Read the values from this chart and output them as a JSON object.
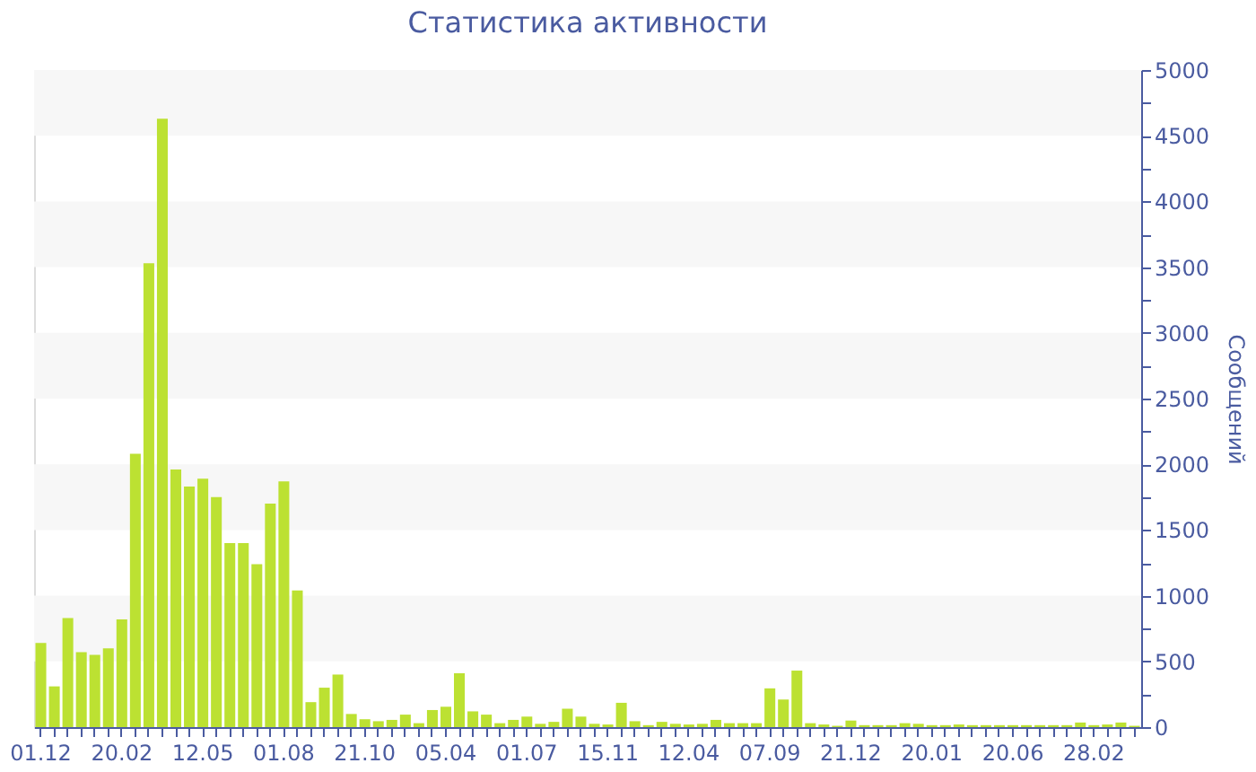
{
  "chart_data": {
    "type": "bar",
    "title": "Статистика активности",
    "ylabel": "Сообщений",
    "categories": [
      "01.12",
      null,
      null,
      null,
      null,
      null,
      "20.02",
      null,
      null,
      null,
      null,
      null,
      "12.05",
      null,
      null,
      null,
      null,
      null,
      "01.08",
      null,
      null,
      null,
      null,
      null,
      "21.10",
      null,
      null,
      null,
      null,
      null,
      "05.04",
      null,
      null,
      null,
      null,
      null,
      "01.07",
      null,
      null,
      null,
      null,
      null,
      "15.11",
      null,
      null,
      null,
      null,
      null,
      "12.04",
      null,
      null,
      null,
      null,
      null,
      "07.09",
      null,
      null,
      null,
      null,
      null,
      "21.12",
      null,
      null,
      null,
      null,
      null,
      "20.01",
      null,
      null,
      null,
      null,
      null,
      "20.06",
      null,
      null,
      null,
      null,
      null,
      "28.02",
      null,
      null,
      null
    ],
    "values": [
      640,
      310,
      830,
      570,
      550,
      600,
      820,
      2080,
      3530,
      4630,
      1960,
      1830,
      1890,
      1750,
      1400,
      1400,
      1240,
      1700,
      1870,
      1040,
      190,
      300,
      400,
      100,
      60,
      45,
      55,
      95,
      30,
      130,
      155,
      410,
      120,
      95,
      30,
      55,
      80,
      25,
      40,
      140,
      80,
      25,
      20,
      185,
      45,
      15,
      40,
      25,
      20,
      25,
      55,
      30,
      30,
      30,
      295,
      210,
      430,
      30,
      20,
      10,
      50,
      15,
      15,
      15,
      30,
      25,
      15,
      15,
      20,
      15,
      15,
      15,
      15,
      15,
      15,
      15,
      15,
      35,
      15,
      20,
      35,
      10
    ],
    "color": "#bce132",
    "ylim": [
      0,
      5000
    ],
    "yticks": [
      0,
      {
        "value": 250,
        "label": null
      },
      500,
      {
        "value": 750,
        "label": null
      },
      1000,
      {
        "value": 1250,
        "label": null
      },
      1500,
      {
        "value": 1750,
        "label": null
      },
      2000,
      {
        "value": 2250,
        "label": null
      },
      2500,
      {
        "value": 2750,
        "label": null
      },
      3000,
      {
        "value": 3250,
        "label": null
      },
      3500,
      {
        "value": 3750,
        "label": null
      },
      4000,
      {
        "value": 4250,
        "label": null
      },
      4500,
      {
        "value": 4750,
        "label": null
      },
      5000
    ],
    "bands": [
      {
        "axis": "y",
        "from": 500,
        "to": 1000,
        "color": "#f7f7f7"
      },
      {
        "axis": "y",
        "from": 1500,
        "to": 2000,
        "color": "#f7f7f7"
      },
      {
        "axis": "y",
        "from": 2500,
        "to": 3000,
        "color": "#f7f7f7"
      },
      {
        "axis": "y",
        "from": 3500,
        "to": 4000,
        "color": "#f7f7f7"
      },
      {
        "axis": "y",
        "from": 4500,
        "to": 5000,
        "color": "#f7f7f7"
      }
    ],
    "grid": false
  }
}
